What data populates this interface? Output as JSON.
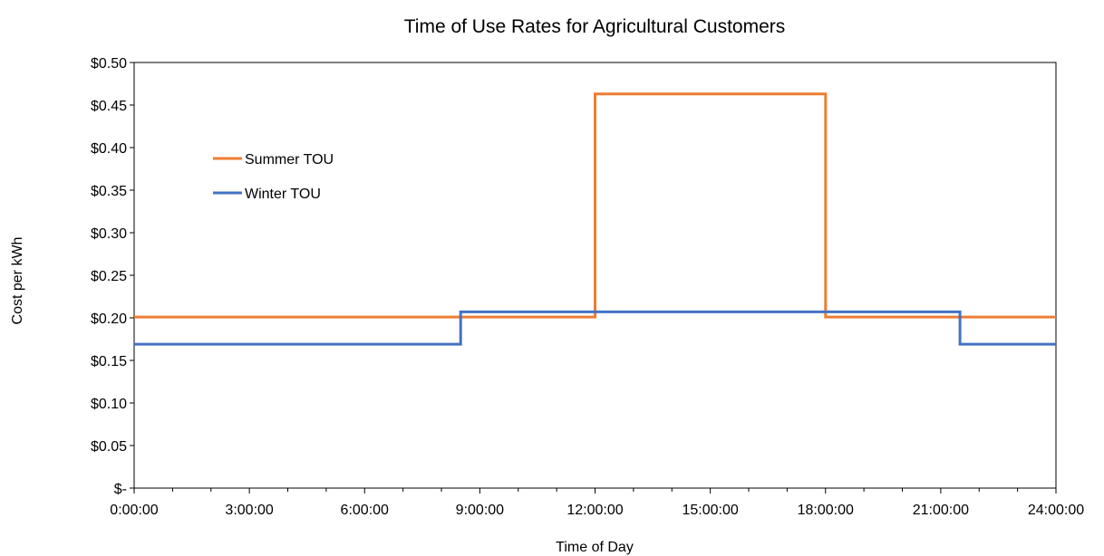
{
  "chart_data": {
    "type": "line",
    "title": "Time of Use Rates for Agricultural Customers",
    "xlabel": "Time of Day",
    "ylabel": "Cost per kWh",
    "x_unit": "hours",
    "xlim": [
      0,
      24
    ],
    "ylim": [
      0,
      0.5
    ],
    "x_ticks": [
      {
        "value": 0,
        "label": "0:00:00"
      },
      {
        "value": 3,
        "label": "3:00:00"
      },
      {
        "value": 6,
        "label": "6:00:00"
      },
      {
        "value": 9,
        "label": "9:00:00"
      },
      {
        "value": 12,
        "label": "12:00:00"
      },
      {
        "value": 15,
        "label": "15:00:00"
      },
      {
        "value": 18,
        "label": "18:00:00"
      },
      {
        "value": 21,
        "label": "21:00:00"
      },
      {
        "value": 24,
        "label": "24:00:00"
      }
    ],
    "y_ticks": [
      {
        "value": 0,
        "label": "$-"
      },
      {
        "value": 0.05,
        "label": "$0.05"
      },
      {
        "value": 0.1,
        "label": "$0.10"
      },
      {
        "value": 0.15,
        "label": "$0.15"
      },
      {
        "value": 0.2,
        "label": "$0.20"
      },
      {
        "value": 0.25,
        "label": "$0.25"
      },
      {
        "value": 0.3,
        "label": "$0.30"
      },
      {
        "value": 0.35,
        "label": "$0.35"
      },
      {
        "value": 0.4,
        "label": "$0.40"
      },
      {
        "value": 0.45,
        "label": "$0.45"
      },
      {
        "value": 0.5,
        "label": "$0.50"
      }
    ],
    "grid": false,
    "legend_position": "upper-left inside plot",
    "series": [
      {
        "name": "Summer TOU",
        "color": "#ED7D31",
        "points": [
          [
            0,
            0.201
          ],
          [
            12,
            0.201
          ],
          [
            12,
            0.463
          ],
          [
            18,
            0.463
          ],
          [
            18,
            0.201
          ],
          [
            24,
            0.201
          ]
        ]
      },
      {
        "name": "Winter TOU",
        "color": "#4472C4",
        "points": [
          [
            0,
            0.169
          ],
          [
            8.5,
            0.169
          ],
          [
            8.5,
            0.207
          ],
          [
            21.5,
            0.207
          ],
          [
            21.5,
            0.169
          ],
          [
            24,
            0.169
          ]
        ]
      }
    ]
  }
}
